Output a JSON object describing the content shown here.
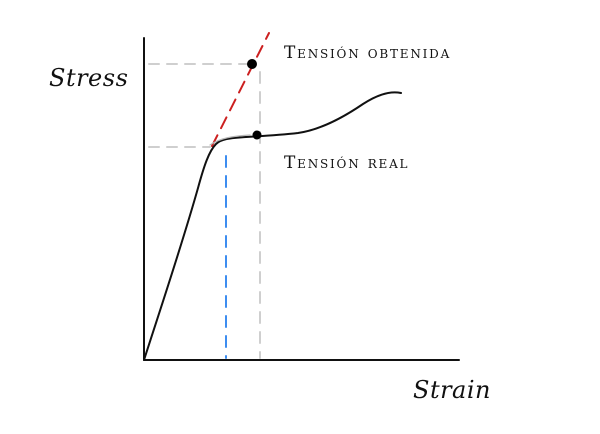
{
  "diagram": {
    "y_axis_label": "Stress",
    "x_axis_label": "Strain",
    "obtained_stress_label": "Tensión obtenida",
    "real_stress_label": "Tensión real",
    "colors": {
      "curve": "#111111",
      "axes": "#111111",
      "guides": "#cfcfcf",
      "extrapolated_line": "#cc2020",
      "strain_marker": "#3d8df0",
      "points": "#000000"
    }
  }
}
